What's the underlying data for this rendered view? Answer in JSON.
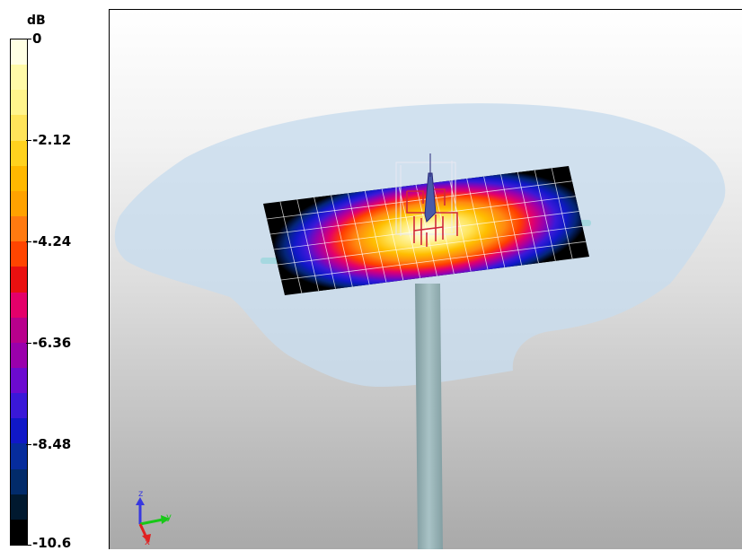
{
  "legend": {
    "unit": "dB",
    "ticks": [
      "0",
      "-2.12",
      "-4.24",
      "-6.36",
      "-8.48",
      "-10.6"
    ],
    "colors": [
      "#ffffe4",
      "#fffaa8",
      "#fff48c",
      "#ffe45a",
      "#ffd21e",
      "#ffb800",
      "#ffa200",
      "#ff7a10",
      "#ff4500",
      "#e91010",
      "#e4006a",
      "#b8008c",
      "#9a00ac",
      "#6c0ad0",
      "#3a18d8",
      "#1018c8",
      "#062c9c",
      "#022b6a",
      "#01192f",
      "#000000"
    ]
  },
  "scene": {
    "colors": {
      "radiation_plume": "#c8dcee",
      "mast": "#9eb9bc",
      "grid_lines": "#ffffff",
      "antenna_model": "#d1283a",
      "connector_pins": "#a6d8e0"
    }
  },
  "axis_triad": {
    "x_label": "x",
    "y_label": "y",
    "z_label": "z",
    "x_color": "#e02020",
    "y_color": "#18c818",
    "z_color": "#3838e0"
  }
}
